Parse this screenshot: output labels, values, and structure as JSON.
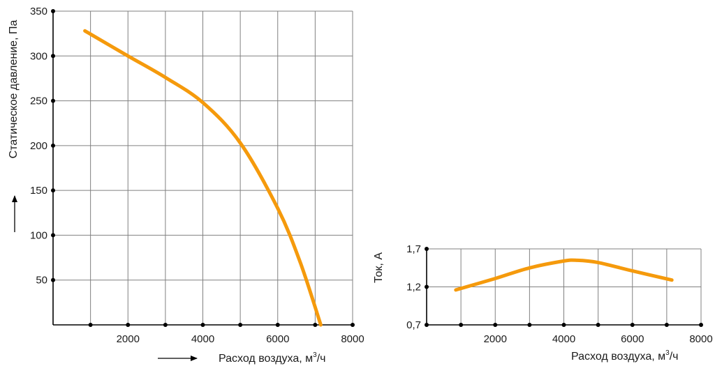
{
  "colors": {
    "curve": "#f59a0c",
    "grid": "#808080",
    "axis": "#000000"
  },
  "chart_data": [
    {
      "type": "line",
      "title": "",
      "xlabel_text": "Расход воздуха, м",
      "xlabel_sup": "3",
      "xlabel_tail": "/ч",
      "ylabel": "Статическое давление, Па",
      "xlim": [
        0,
        8000
      ],
      "ylim": [
        0,
        350
      ],
      "x_ticks": [
        1000,
        2000,
        3000,
        4000,
        5000,
        6000,
        7000,
        8000
      ],
      "x_tick_labels": [
        "",
        "2000",
        "",
        "4000",
        "",
        "6000",
        "",
        "8000"
      ],
      "y_ticks": [
        50,
        100,
        150,
        200,
        250,
        300,
        350
      ],
      "y_tick_labels": [
        "50",
        "100",
        "150",
        "200",
        "250",
        "300",
        "350"
      ],
      "grid": true,
      "series": [
        {
          "x": [
            850,
            2000,
            3000,
            4000,
            5000,
            6000,
            6600,
            7150
          ],
          "y": [
            328,
            300,
            276,
            248,
            203,
            130,
            70,
            0
          ]
        }
      ]
    },
    {
      "type": "line",
      "title": "",
      "xlabel_text": "Расход воздуха, м",
      "xlabel_sup": "3",
      "xlabel_tail": "/ч",
      "ylabel": "Ток, А",
      "xlim": [
        0,
        8000
      ],
      "ylim": [
        0.7,
        1.7
      ],
      "x_ticks": [
        1000,
        2000,
        3000,
        4000,
        5000,
        6000,
        7000,
        8000
      ],
      "x_tick_labels": [
        "",
        "2000",
        "",
        "4000",
        "",
        "6000",
        "",
        "8000"
      ],
      "y_ticks": [
        0.7,
        1.2,
        1.7
      ],
      "y_tick_labels": [
        "0,7",
        "1,2",
        "1,7"
      ],
      "grid": true,
      "series": [
        {
          "x": [
            850,
            2000,
            3000,
            4000,
            4400,
            5000,
            6000,
            7150
          ],
          "y": [
            1.16,
            1.31,
            1.45,
            1.54,
            1.55,
            1.52,
            1.41,
            1.29
          ]
        }
      ]
    }
  ]
}
